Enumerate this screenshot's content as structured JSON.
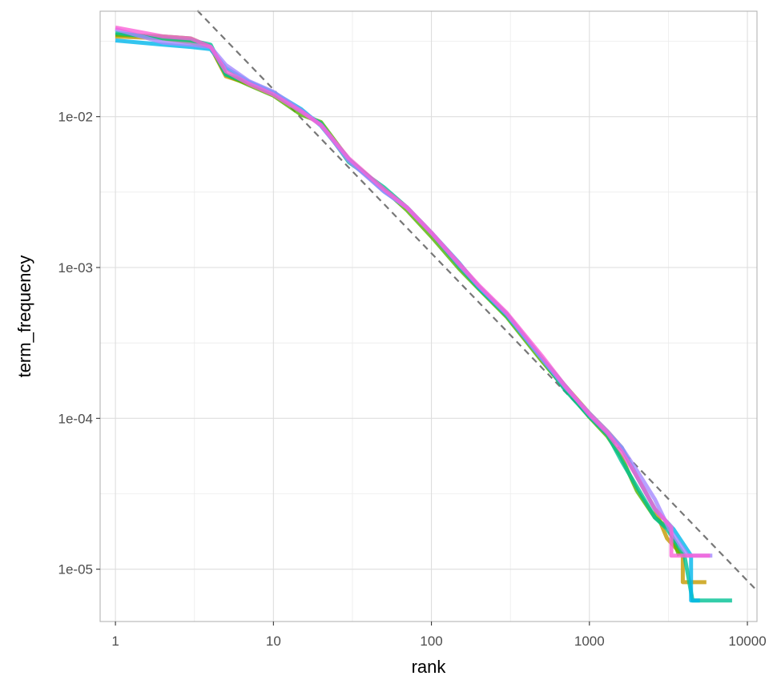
{
  "chart_data": {
    "type": "line",
    "xlabel": "rank",
    "ylabel": "term_frequency",
    "x_scale": "log10",
    "y_scale": "log10",
    "xlim": [
      0.8,
      11500
    ],
    "ylim": [
      4.5e-06,
      0.05
    ],
    "grid": true,
    "legend": "none",
    "x_ticks": [
      1,
      10,
      100,
      1000,
      10000
    ],
    "x_tick_labels": [
      "1",
      "10",
      "100",
      "1000",
      "10000"
    ],
    "y_ticks": [
      1e-05,
      0.0001,
      0.001,
      0.01
    ],
    "y_tick_labels": [
      "1e-05",
      "1e-04",
      "1e-03",
      "1e-02"
    ],
    "reference_line": {
      "style": "dashed",
      "color": "#777777",
      "points": [
        [
          3.3,
          0.0505
        ],
        [
          11500,
          7.2e-06
        ]
      ]
    },
    "series": [
      {
        "color": "#C49A00",
        "values": [
          [
            1,
            0.034
          ],
          [
            2,
            0.033
          ],
          [
            3,
            0.031
          ],
          [
            4,
            0.029
          ],
          [
            5,
            0.0185
          ],
          [
            7,
            0.0165
          ],
          [
            10,
            0.0142
          ],
          [
            15,
            0.011
          ],
          [
            20,
            0.0088
          ],
          [
            30,
            0.0051
          ],
          [
            50,
            0.0033
          ],
          [
            70,
            0.0025
          ],
          [
            100,
            0.0017
          ],
          [
            150,
            0.00105
          ],
          [
            200,
            0.00074
          ],
          [
            300,
            0.00049
          ],
          [
            500,
            0.00025
          ],
          [
            700,
            0.000165
          ],
          [
            1000,
            0.000108
          ],
          [
            1300,
            8.2e-05
          ],
          [
            1600,
            6.4e-05
          ],
          [
            2000,
            4.1e-05
          ],
          [
            2600,
            2.5e-05
          ],
          [
            3100,
            1.6e-05
          ],
          [
            3900,
            1.23e-05
          ],
          [
            3900,
            8.2e-06
          ],
          [
            5500,
            8.2e-06
          ]
        ]
      },
      {
        "color": "#53B400",
        "values": [
          [
            1,
            0.035
          ],
          [
            2,
            0.034
          ],
          [
            3,
            0.033
          ],
          [
            4,
            0.029
          ],
          [
            5,
            0.019
          ],
          [
            7,
            0.0162
          ],
          [
            10,
            0.0138
          ],
          [
            15,
            0.0103
          ],
          [
            20,
            0.0092
          ],
          [
            30,
            0.0052
          ],
          [
            50,
            0.0033
          ],
          [
            70,
            0.0024
          ],
          [
            100,
            0.0016
          ],
          [
            150,
            0.00098
          ],
          [
            200,
            0.00072
          ],
          [
            300,
            0.00047
          ],
          [
            500,
            0.00024
          ],
          [
            700,
            0.000158
          ],
          [
            1000,
            0.000102
          ],
          [
            1300,
            7.6e-05
          ],
          [
            1600,
            5.5e-05
          ],
          [
            2000,
            3.3e-05
          ],
          [
            2600,
            2.2e-05
          ],
          [
            3200,
            1.85e-05
          ],
          [
            3700,
            1.23e-05
          ]
        ]
      },
      {
        "color": "#00C094",
        "values": [
          [
            1,
            0.036
          ],
          [
            2,
            0.033
          ],
          [
            3,
            0.032
          ],
          [
            4,
            0.03
          ],
          [
            5,
            0.019
          ],
          [
            7,
            0.0168
          ],
          [
            10,
            0.0142
          ],
          [
            15,
            0.0108
          ],
          [
            20,
            0.009
          ],
          [
            30,
            0.005
          ],
          [
            50,
            0.0034
          ],
          [
            70,
            0.0025
          ],
          [
            100,
            0.0017
          ],
          [
            150,
            0.00102
          ],
          [
            200,
            0.00073
          ],
          [
            300,
            0.00048
          ],
          [
            500,
            0.00025
          ],
          [
            700,
            0.000155
          ],
          [
            1000,
            0.000103
          ],
          [
            1300,
            7.8e-05
          ],
          [
            1600,
            5.2e-05
          ],
          [
            2000,
            3.5e-05
          ],
          [
            2600,
            2.2e-05
          ],
          [
            3100,
            1.85e-05
          ],
          [
            4000,
            1.23e-05
          ],
          [
            4500,
            6.2e-06
          ],
          [
            8000,
            6.2e-06
          ]
        ]
      },
      {
        "color": "#00B6EB",
        "values": [
          [
            1,
            0.032
          ],
          [
            2,
            0.03
          ],
          [
            3,
            0.029
          ],
          [
            4,
            0.028
          ],
          [
            5,
            0.021
          ],
          [
            7,
            0.017
          ],
          [
            10,
            0.0145
          ],
          [
            15,
            0.0112
          ],
          [
            20,
            0.0087
          ],
          [
            30,
            0.0052
          ],
          [
            50,
            0.0032
          ],
          [
            70,
            0.0025
          ],
          [
            100,
            0.0017
          ],
          [
            150,
            0.00107
          ],
          [
            200,
            0.00074
          ],
          [
            300,
            0.00049
          ],
          [
            500,
            0.00025
          ],
          [
            700,
            0.000165
          ],
          [
            1000,
            0.000105
          ],
          [
            1300,
            8e-05
          ],
          [
            1600,
            6.4e-05
          ],
          [
            2000,
            4.1e-05
          ],
          [
            2600,
            2.5e-05
          ],
          [
            3400,
            1.85e-05
          ],
          [
            4400,
            1.23e-05
          ],
          [
            4400,
            6.2e-06
          ],
          [
            5000,
            6.2e-06
          ]
        ]
      },
      {
        "color": "#A58AFF",
        "values": [
          [
            1,
            0.038
          ],
          [
            2,
            0.031
          ],
          [
            3,
            0.03
          ],
          [
            4,
            0.029
          ],
          [
            5,
            0.022
          ],
          [
            7,
            0.0172
          ],
          [
            10,
            0.0146
          ],
          [
            15,
            0.011
          ],
          [
            20,
            0.0088
          ],
          [
            30,
            0.0051
          ],
          [
            50,
            0.0032
          ],
          [
            70,
            0.0025
          ],
          [
            100,
            0.0017
          ],
          [
            150,
            0.00104
          ],
          [
            200,
            0.00075
          ],
          [
            300,
            0.00049
          ],
          [
            500,
            0.00025
          ],
          [
            700,
            0.000162
          ],
          [
            1000,
            0.000108
          ],
          [
            1300,
            8.2e-05
          ],
          [
            1600,
            6.4e-05
          ],
          [
            2000,
            4.5e-05
          ],
          [
            2600,
            2.9e-05
          ],
          [
            3200,
            1.85e-05
          ],
          [
            4200,
            1.23e-05
          ],
          [
            6000,
            1.23e-05
          ]
        ]
      },
      {
        "color": "#FB61D7",
        "values": [
          [
            1,
            0.039
          ],
          [
            2,
            0.034
          ],
          [
            3,
            0.033
          ],
          [
            4,
            0.029
          ],
          [
            5,
            0.02
          ],
          [
            7,
            0.0165
          ],
          [
            10,
            0.014
          ],
          [
            15,
            0.0108
          ],
          [
            20,
            0.0088
          ],
          [
            30,
            0.0053
          ],
          [
            50,
            0.0033
          ],
          [
            70,
            0.0025
          ],
          [
            100,
            0.0017
          ],
          [
            150,
            0.00106
          ],
          [
            200,
            0.00076
          ],
          [
            300,
            0.0005
          ],
          [
            500,
            0.00026
          ],
          [
            700,
            0.000165
          ],
          [
            1000,
            0.000106
          ],
          [
            1300,
            8e-05
          ],
          [
            1600,
            6e-05
          ],
          [
            2000,
            4.1e-05
          ],
          [
            2600,
            2.5e-05
          ],
          [
            3300,
            1.9e-05
          ],
          [
            3300,
            1.23e-05
          ],
          [
            5800,
            1.23e-05
          ]
        ]
      }
    ]
  }
}
